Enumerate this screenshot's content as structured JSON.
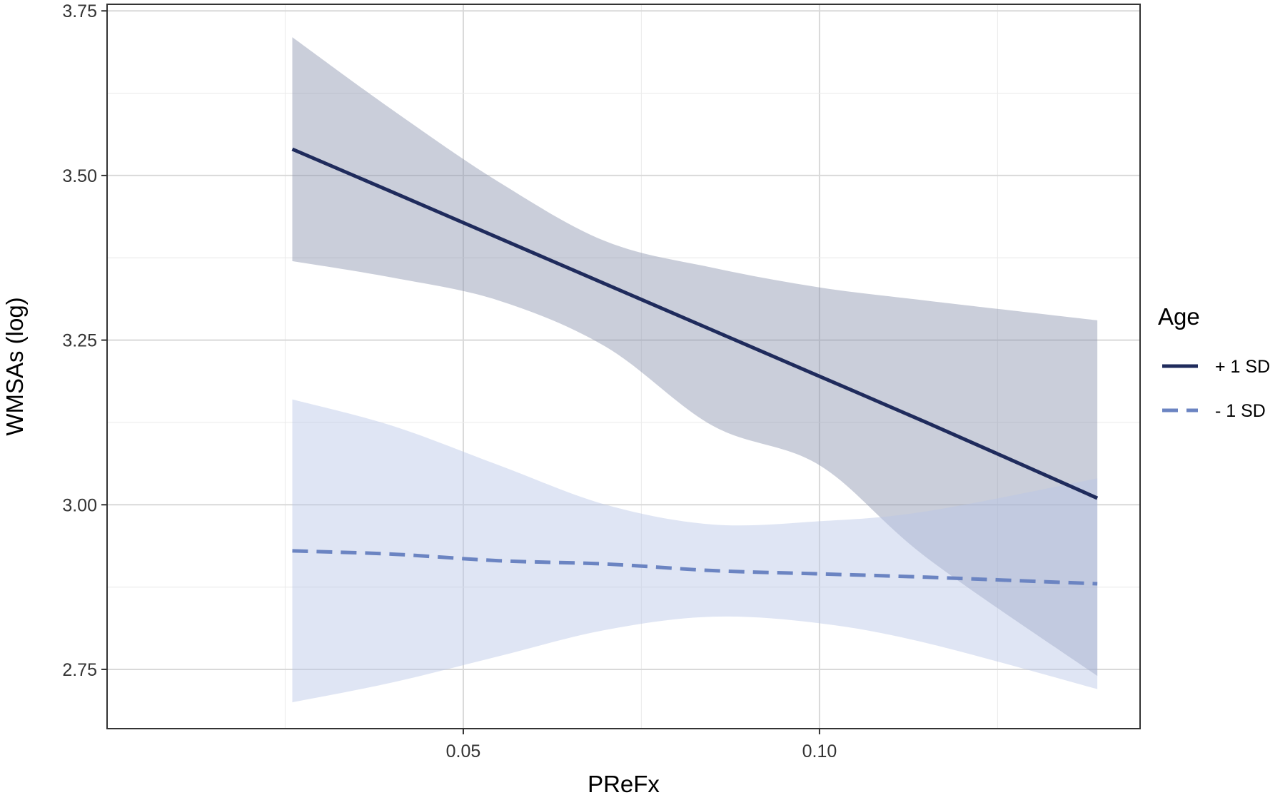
{
  "chart_data": {
    "type": "line",
    "xlabel": "PReFx",
    "ylabel": "WMSAs (log)",
    "xlim": [
      0.0,
      0.145
    ],
    "ylim": [
      2.66,
      3.76
    ],
    "x_ticks": [
      0.05,
      0.1
    ],
    "x_tick_labels": [
      "0.05",
      "0.10"
    ],
    "y_ticks": [
      2.75,
      3.0,
      3.25,
      3.5,
      3.75
    ],
    "y_tick_labels": [
      "2.75",
      "3.00",
      "3.25",
      "3.50",
      "3.75"
    ],
    "grid": true,
    "legend": {
      "title": "Age",
      "position": "right"
    },
    "series": [
      {
        "name": "+ 1 SD",
        "color": "#1f2b5c",
        "line_style": "solid",
        "ribbon_color": "#8a92ad",
        "x": [
          0.026,
          0.04,
          0.055,
          0.07,
          0.085,
          0.1,
          0.115,
          0.139
        ],
        "y": [
          3.54,
          3.475,
          3.405,
          3.335,
          3.265,
          3.195,
          3.125,
          3.01
        ],
        "ci_lower": [
          3.37,
          3.345,
          3.31,
          3.24,
          3.12,
          3.06,
          2.92,
          2.74
        ],
        "ci_upper": [
          3.71,
          3.6,
          3.49,
          3.4,
          3.36,
          3.33,
          3.31,
          3.28
        ]
      },
      {
        "name": "- 1 SD",
        "color": "#6b84c2",
        "line_style": "dashed",
        "ribbon_color": "#b8c6e6",
        "x": [
          0.026,
          0.04,
          0.055,
          0.07,
          0.085,
          0.1,
          0.115,
          0.139
        ],
        "y": [
          2.93,
          2.925,
          2.915,
          2.91,
          2.9,
          2.895,
          2.89,
          2.88
        ],
        "ci_lower": [
          2.7,
          2.73,
          2.77,
          2.81,
          2.83,
          2.82,
          2.79,
          2.72
        ],
        "ci_upper": [
          3.16,
          3.12,
          3.06,
          3.0,
          2.97,
          2.975,
          2.99,
          3.04
        ]
      }
    ]
  }
}
